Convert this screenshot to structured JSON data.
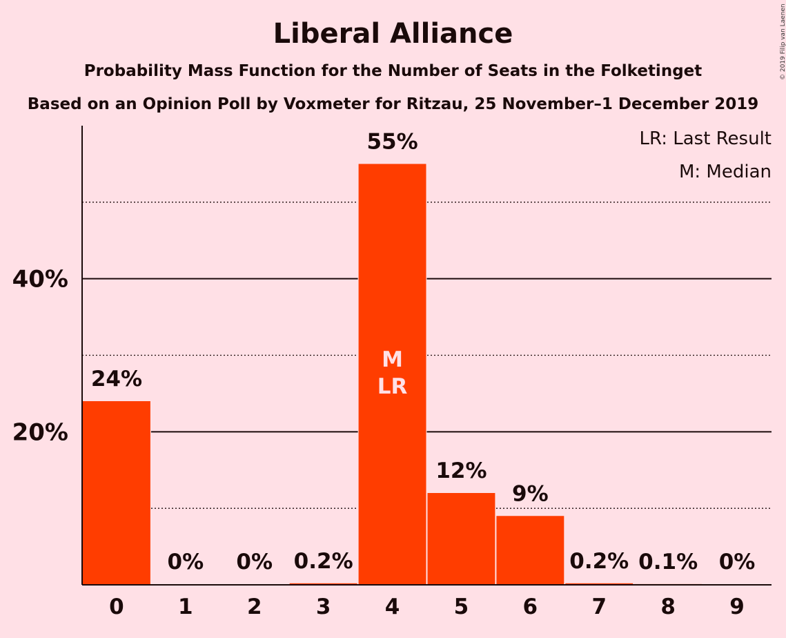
{
  "title": "Liberal Alliance",
  "subtitle": "Probability Mass Function for the Number of Seats in the Folketinget",
  "source": "Based on an Opinion Poll by Voxmeter for Ritzau, 25 November–1 December 2019",
  "copyright": "© 2019 Filip van Laenen",
  "legend": {
    "last_result": "LR: Last Result",
    "median": "M: Median"
  },
  "colors": {
    "background": "#ffe0e6",
    "bar": "#ff3d00",
    "text": "#1a0a0a",
    "marker_text": "#ffe0e6"
  },
  "chart_data": {
    "type": "bar",
    "categories": [
      "0",
      "1",
      "2",
      "3",
      "4",
      "5",
      "6",
      "7",
      "8",
      "9"
    ],
    "values": [
      24,
      0,
      0,
      0.2,
      55,
      12,
      9,
      0.2,
      0.1,
      0
    ],
    "value_labels": [
      "24%",
      "0%",
      "0%",
      "0.2%",
      "55%",
      "12%",
      "9%",
      "0.2%",
      "0.1%",
      "0%"
    ],
    "ylim": [
      0,
      60
    ],
    "y_ticks": [
      {
        "value": 20,
        "label": "20%"
      },
      {
        "value": 40,
        "label": "40%"
      }
    ],
    "minor_gridlines": [
      10,
      30,
      50
    ],
    "median_seat": "4",
    "last_result_seat": "4",
    "median_marker": "M",
    "last_result_marker": "LR",
    "legend_position": "top-right"
  }
}
